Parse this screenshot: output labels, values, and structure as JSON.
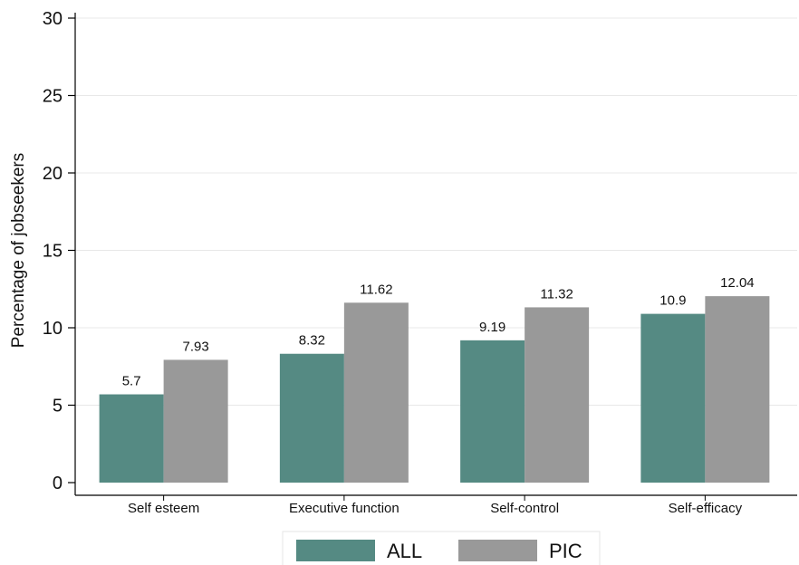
{
  "chart_data": {
    "type": "bar",
    "categories": [
      "Self esteem",
      "Executive function",
      "Self-control",
      "Self-efficacy"
    ],
    "series": [
      {
        "name": "ALL",
        "values": [
          5.7,
          8.32,
          9.19,
          10.9
        ],
        "color": "#558a83"
      },
      {
        "name": "PIC",
        "values": [
          7.93,
          11.62,
          11.32,
          12.04
        ],
        "color": "#999999"
      }
    ],
    "value_labels": [
      [
        "5.7",
        "8.32",
        "9.19",
        "10.9"
      ],
      [
        "7.93",
        "11.62",
        "11.32",
        "12.04"
      ]
    ],
    "ylabel": "Percentage of jobseekers",
    "xlabel": "",
    "ylim": [
      0,
      30
    ],
    "yticks": [
      0,
      5,
      10,
      15,
      20,
      25,
      30
    ],
    "grid": true,
    "legend_position": "bottom"
  }
}
